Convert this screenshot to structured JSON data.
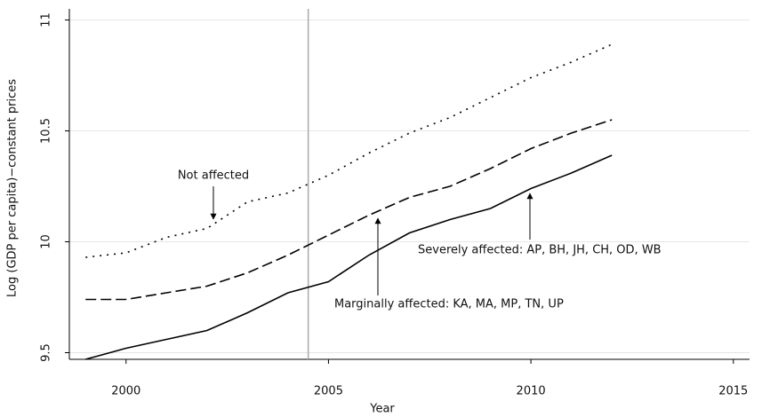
{
  "chart_data": {
    "type": "line",
    "xlabel": "Year",
    "ylabel": "Log (GDP per capita)−constant prices",
    "x": [
      1999,
      2000,
      2001,
      2002,
      2003,
      2004,
      2005,
      2006,
      2007,
      2008,
      2009,
      2010,
      2011,
      2012
    ],
    "series": [
      {
        "name": "Not affected",
        "color": "#000000",
        "line_style": "dotted",
        "values": [
          9.93,
          9.95,
          10.02,
          10.06,
          10.18,
          10.22,
          10.3,
          10.4,
          10.49,
          10.56,
          10.65,
          10.74,
          10.81,
          10.89
        ]
      },
      {
        "name": "Marginally affected: KA, MA, MP, TN, UP",
        "color": "#000000",
        "line_style": "dashed",
        "values": [
          9.74,
          9.74,
          9.77,
          9.8,
          9.86,
          9.94,
          10.03,
          10.12,
          10.2,
          10.25,
          10.33,
          10.42,
          10.49,
          10.55
        ]
      },
      {
        "name": "Severely affected: AP, BH, JH, CH, OD, WB",
        "color": "#000000",
        "line_style": "solid",
        "values": [
          9.47,
          9.52,
          9.56,
          9.6,
          9.68,
          9.77,
          9.82,
          9.94,
          10.04,
          10.1,
          10.15,
          10.24,
          10.31,
          10.39
        ]
      }
    ],
    "xlim": [
      1998.6,
      2015.4
    ],
    "xticks": [
      2000,
      2005,
      2010,
      2015
    ],
    "ylim": [
      9.47,
      11.05
    ],
    "yticks": [
      9.5,
      10,
      10.5,
      11
    ],
    "grid": true,
    "vline": 2004.5
  }
}
